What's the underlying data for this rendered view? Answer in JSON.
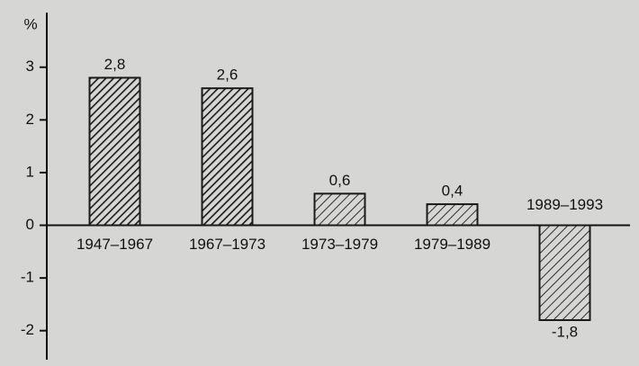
{
  "chart_data": {
    "type": "bar",
    "y_label": "%",
    "categories": [
      "1947–1967",
      "1967–1973",
      "1973–1979",
      "1979–1989",
      "1989–1993"
    ],
    "values": [
      2.8,
      2.6,
      0.6,
      0.4,
      -1.8
    ],
    "value_labels": [
      "2,8",
      "2,6",
      "0,6",
      "0,4",
      "-1,8"
    ],
    "ylim": [
      -2.5,
      3.9
    ],
    "yticks": [
      -2,
      -1,
      0,
      1,
      2,
      3
    ],
    "color": "#1a1a1a"
  }
}
